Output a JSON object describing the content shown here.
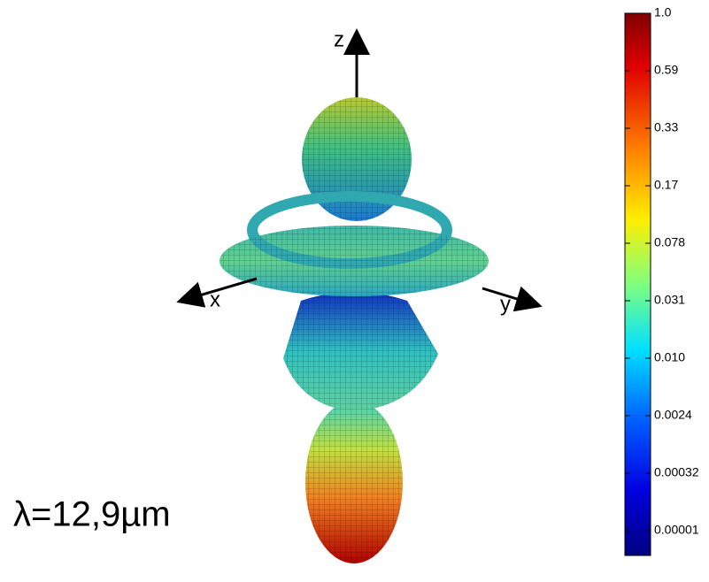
{
  "figure": {
    "axis_labels": {
      "x": "x",
      "y": "y",
      "z": "z"
    },
    "annotation": "λ=12,9µm",
    "colorbar": {
      "ticks": [
        "1.0",
        "0.59",
        "0.33",
        "0.17",
        "0.078",
        "0.031",
        "0.010",
        "0.0024",
        "0.00032",
        "0.00001"
      ]
    }
  }
}
